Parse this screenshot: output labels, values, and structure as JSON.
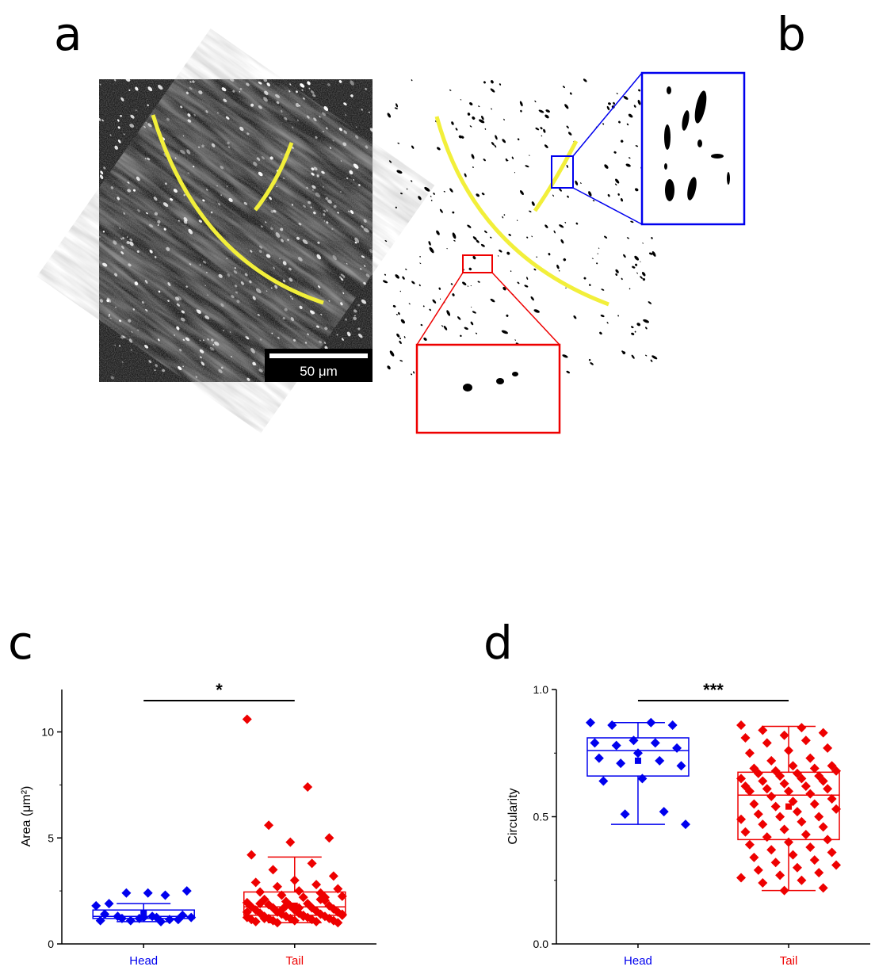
{
  "panels": {
    "a": "a",
    "b": "b",
    "c": "c",
    "d": "d"
  },
  "scale_bar": {
    "label": "50 μm"
  },
  "colors": {
    "head": "#0000ee",
    "tail": "#ee0000",
    "trace": "#f2ef3a",
    "inset_blue": "#0000ee",
    "inset_red": "#ee0000"
  },
  "chart_data": [
    {
      "id": "c",
      "type": "box-scatter",
      "xlabel": "",
      "ylabel": "Area (μm²)",
      "ylim": [
        0,
        12
      ],
      "yticks": [
        0,
        5,
        10
      ],
      "categories": [
        "Head",
        "Tail"
      ],
      "significance": "*",
      "series": [
        {
          "name": "Head",
          "box": {
            "min": 1.05,
            "q1": 1.2,
            "median": 1.3,
            "mean": 1.45,
            "q3": 1.6,
            "max": 1.9
          },
          "points": [
            1.8,
            1.25,
            1.3,
            1.15,
            1.2,
            1.1,
            1.05,
            1.2,
            1.35,
            1.25,
            1.4,
            2.3,
            2.4,
            2.5,
            2.4,
            1.9,
            1.15,
            1.1,
            1.25,
            1.3
          ]
        },
        {
          "name": "Tail",
          "box": {
            "min": 1.0,
            "q1": 1.35,
            "median": 1.75,
            "mean": 1.8,
            "q3": 2.45,
            "max": 4.1
          },
          "points": [
            10.6,
            7.4,
            5.6,
            5.0,
            4.8,
            4.2,
            3.8,
            3.5,
            3.2,
            3.0,
            2.9,
            2.8,
            2.7,
            2.6,
            2.5,
            2.45,
            2.4,
            2.3,
            2.25,
            2.2,
            2.1,
            2.05,
            2.0,
            1.95,
            1.9,
            1.85,
            1.8,
            1.8,
            1.75,
            1.7,
            1.7,
            1.65,
            1.6,
            1.6,
            1.55,
            1.5,
            1.5,
            1.45,
            1.45,
            1.4,
            1.4,
            1.35,
            1.35,
            1.3,
            1.3,
            1.3,
            1.25,
            1.25,
            1.2,
            1.2,
            1.2,
            1.15,
            1.15,
            1.1,
            1.1,
            1.1,
            1.05,
            1.05,
            1.0,
            1.0,
            1.7,
            1.9,
            2.1,
            1.6,
            1.4,
            1.3,
            1.2,
            2.2,
            1.8,
            1.5
          ]
        }
      ]
    },
    {
      "id": "d",
      "type": "box-scatter",
      "xlabel": "",
      "ylabel": "Circularity",
      "ylim": [
        0.0,
        1.0
      ],
      "yticks": [
        0.0,
        0.5,
        1.0
      ],
      "ytick_labels": [
        "0.0",
        "0.5",
        "1.0"
      ],
      "categories": [
        "Head",
        "Tail"
      ],
      "significance": "***",
      "series": [
        {
          "name": "Head",
          "box": {
            "min": 0.47,
            "q1": 0.66,
            "median": 0.76,
            "mean": 0.72,
            "q3": 0.81,
            "max": 0.87
          },
          "points": [
            0.87,
            0.87,
            0.86,
            0.86,
            0.8,
            0.79,
            0.79,
            0.78,
            0.77,
            0.75,
            0.73,
            0.72,
            0.71,
            0.7,
            0.65,
            0.64,
            0.52,
            0.51,
            0.47
          ]
        },
        {
          "name": "Tail",
          "box": {
            "min": 0.21,
            "q1": 0.41,
            "median": 0.585,
            "mean": 0.54,
            "q3": 0.675,
            "max": 0.855
          },
          "points": [
            0.86,
            0.85,
            0.84,
            0.83,
            0.82,
            0.81,
            0.8,
            0.79,
            0.77,
            0.76,
            0.75,
            0.73,
            0.72,
            0.7,
            0.7,
            0.69,
            0.69,
            0.68,
            0.68,
            0.67,
            0.67,
            0.66,
            0.66,
            0.65,
            0.65,
            0.64,
            0.64,
            0.63,
            0.62,
            0.62,
            0.61,
            0.61,
            0.6,
            0.6,
            0.59,
            0.58,
            0.57,
            0.56,
            0.55,
            0.55,
            0.54,
            0.53,
            0.52,
            0.51,
            0.5,
            0.5,
            0.49,
            0.48,
            0.47,
            0.46,
            0.45,
            0.44,
            0.43,
            0.42,
            0.41,
            0.4,
            0.39,
            0.38,
            0.37,
            0.36,
            0.35,
            0.34,
            0.33,
            0.32,
            0.31,
            0.3,
            0.29,
            0.28,
            0.27,
            0.26,
            0.25,
            0.24,
            0.22,
            0.21
          ]
        }
      ]
    }
  ]
}
